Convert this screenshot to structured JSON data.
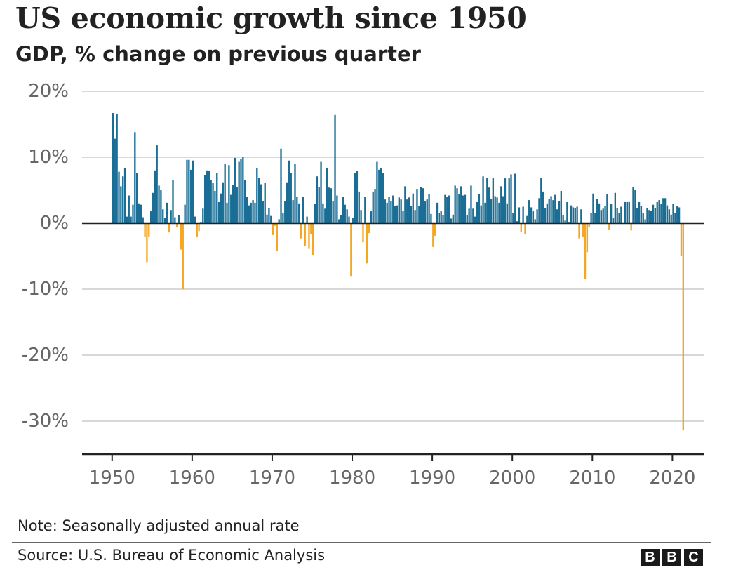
{
  "chart_data": {
    "type": "bar",
    "title": "US economic growth since 1950",
    "subtitle": "GDP, % change on previous quarter",
    "xlabel": "",
    "ylabel": "GDP, % change on previous quarter",
    "ylim": [
      -35,
      20
    ],
    "y_ticks": [
      20,
      10,
      0,
      -10,
      -20,
      -30
    ],
    "y_tick_labels": [
      "20%",
      "10%",
      "0%",
      "-10%",
      "-20%",
      "-30%"
    ],
    "x_ticks": [
      1950,
      1960,
      1970,
      1980,
      1990,
      2000,
      2010,
      2020
    ],
    "x_tick_labels": [
      "1950",
      "1960",
      "1970",
      "1980",
      "1990",
      "2000",
      "2010",
      "2020"
    ],
    "xlim": [
      1946.25,
      2024.0
    ],
    "grid": true,
    "legend": "none",
    "colors": {
      "positive": "#1a6e96",
      "negative": "#f5a623",
      "gridline": "#cccccc",
      "zero_line": "#222222"
    },
    "series": [
      {
        "name": "GDP % change on previous quarter (annualised)",
        "start": "1950Q1",
        "frequency": "quarterly",
        "values": [
          16.7,
          12.8,
          16.5,
          7.8,
          5.6,
          7.1,
          8.4,
          1.0,
          4.2,
          1.0,
          2.8,
          13.8,
          7.6,
          3.0,
          2.8,
          0.9,
          -2.1,
          -5.9,
          -2.0,
          1.8,
          4.6,
          8.0,
          11.8,
          5.7,
          5.0,
          2.1,
          0.8,
          3.1,
          -1.4,
          2.0,
          6.6,
          0.9,
          -0.6,
          1.2,
          -4.0,
          -10.0,
          2.8,
          9.6,
          9.6,
          8.1,
          9.5,
          1.0,
          -2.1,
          -1.2,
          0.2,
          2.2,
          7.3,
          8.0,
          7.9,
          6.6,
          6.1,
          4.9,
          7.6,
          3.2,
          4.5,
          6.2,
          9.0,
          3.1,
          8.8,
          4.3,
          5.8,
          9.9,
          5.5,
          9.3,
          9.7,
          10.1,
          6.6,
          4.0,
          2.7,
          3.1,
          3.5,
          3.1,
          8.3,
          6.9,
          5.9,
          3.3,
          6.1,
          1.3,
          2.3,
          1.1,
          -1.8,
          -0.4,
          -4.2,
          0.6,
          11.3,
          1.6,
          3.3,
          6.2,
          9.5,
          7.6,
          3.5,
          9.0,
          4.0,
          3.0,
          -2.3,
          4.0,
          -3.4,
          1.0,
          -3.9,
          -1.6,
          -4.9,
          2.9,
          7.1,
          5.5,
          9.3,
          3.0,
          2.2,
          8.3,
          5.4,
          5.3,
          3.4,
          16.4,
          4.2,
          0.6,
          1.2,
          4.0,
          2.8,
          2.1,
          1.0,
          -8.0,
          0.8,
          7.6,
          7.9,
          4.8,
          2.0,
          -2.9,
          4.0,
          -6.1,
          -1.5,
          1.8,
          4.8,
          5.2,
          9.3,
          8.1,
          8.4,
          7.6,
          3.6,
          3.1,
          4.0,
          3.4,
          4.2,
          2.6,
          2.7,
          3.9,
          3.6,
          1.9,
          5.6,
          3.6,
          3.9,
          2.6,
          4.5,
          2.0,
          5.2,
          2.6,
          5.5,
          5.3,
          3.3,
          3.6,
          4.4,
          1.4,
          -3.6,
          -1.9,
          3.1,
          1.5,
          1.8,
          1.2,
          4.3,
          4.0,
          4.2,
          0.7,
          1.3,
          5.7,
          5.3,
          4.4,
          5.6,
          4.2,
          4.3,
          1.2,
          2.2,
          5.7,
          2.2,
          1.0,
          3.2,
          4.4,
          2.7,
          7.1,
          3.1,
          6.9,
          5.4,
          3.7,
          6.8,
          4.1,
          3.9,
          3.1,
          5.6,
          4.1,
          6.8,
          3.0,
          6.8,
          7.4,
          1.5,
          7.5,
          0.3,
          2.4,
          -1.3,
          2.5,
          -1.7,
          1.1,
          3.5,
          2.4,
          1.8,
          0.6,
          2.1,
          3.8,
          6.9,
          4.8,
          2.3,
          3.0,
          3.7,
          4.1,
          3.5,
          4.3,
          2.1,
          3.3,
          4.9,
          1.2,
          0.4,
          3.2,
          0.2,
          2.7,
          2.4,
          2.3,
          2.5,
          -2.3,
          2.1,
          -2.1,
          -8.4,
          -4.4,
          -0.6,
          1.5,
          4.5,
          1.5,
          3.7,
          3.0,
          2.0,
          2.2,
          2.6,
          4.4,
          -1.0,
          2.9,
          0.8,
          4.6,
          2.3,
          1.6,
          2.5,
          0.1,
          3.2,
          3.2,
          3.2,
          -1.1,
          5.5,
          5.0,
          2.3,
          3.2,
          2.6,
          1.5,
          0.6,
          2.3,
          2.0,
          1.9,
          2.8,
          2.3,
          3.2,
          3.5,
          2.9,
          3.8,
          3.8,
          2.7,
          2.1,
          1.3,
          2.9,
          1.5,
          2.6,
          2.4,
          -5.0,
          -31.4
        ]
      }
    ]
  },
  "note": "Note: Seasonally adjusted annual rate",
  "source": "Source: U.S. Bureau of Economic Analysis",
  "logo": {
    "letters": [
      "B",
      "B",
      "C"
    ]
  }
}
